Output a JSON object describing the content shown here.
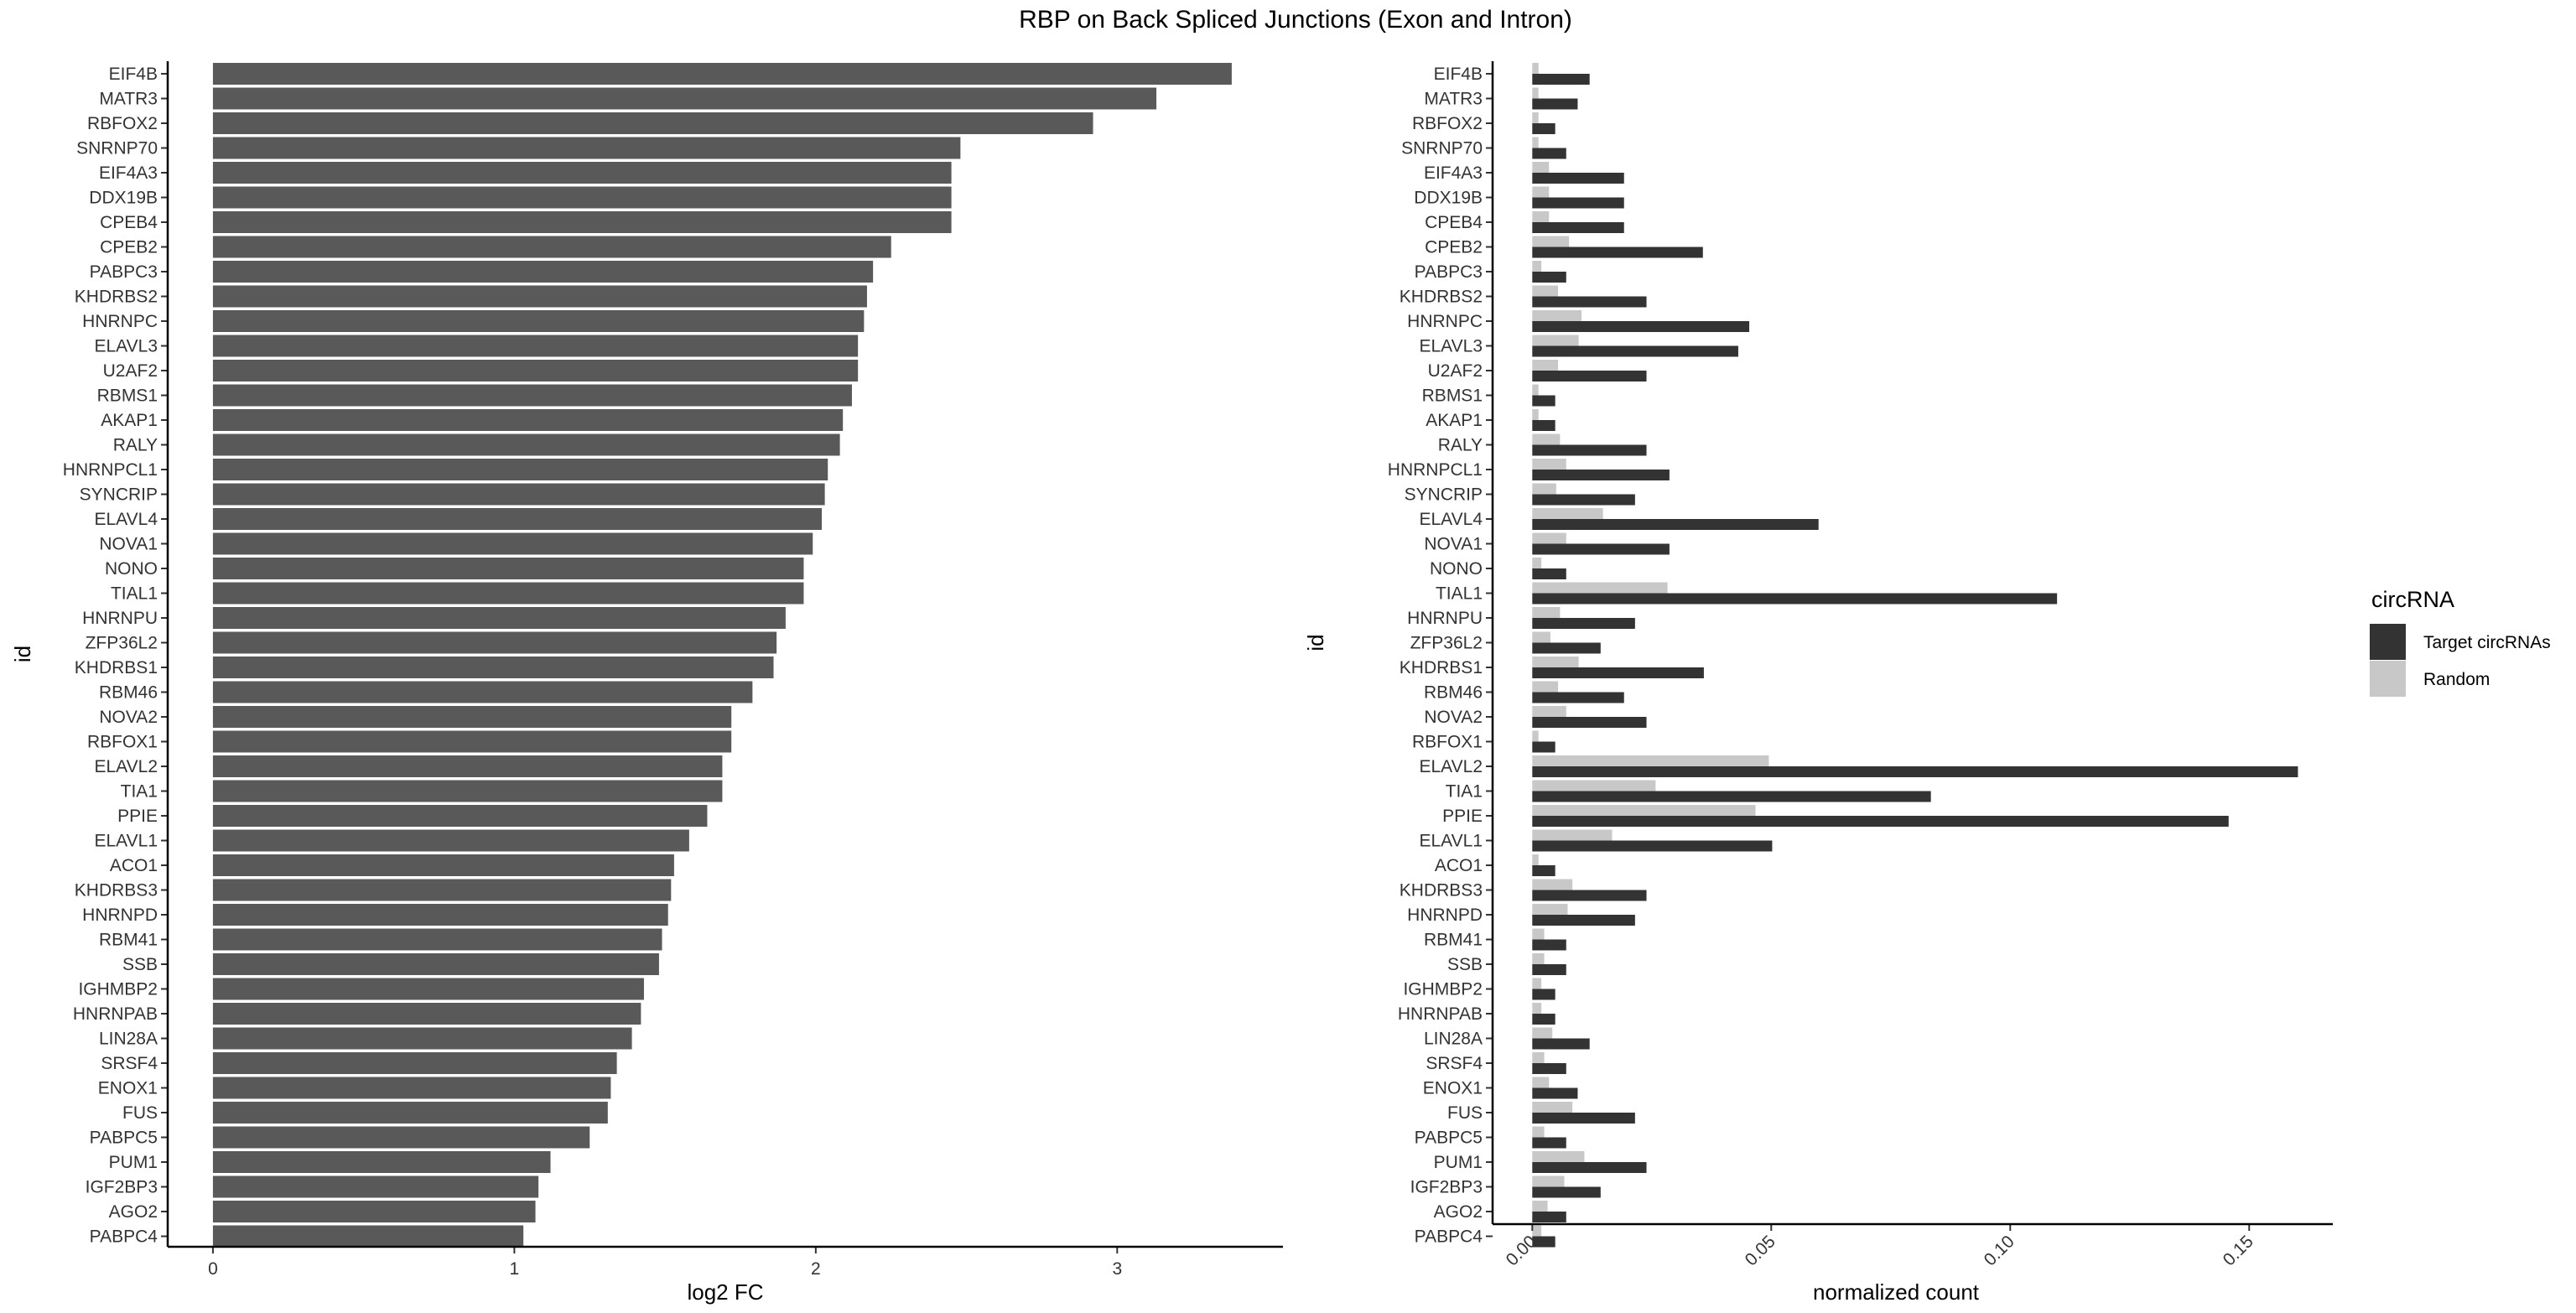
{
  "title": "RBP on Back Spliced Junctions (Exon and Intron)",
  "colors": {
    "fc_bar": "#595959",
    "target": "#333333",
    "random": "#c8c8c8"
  },
  "chart_data": [
    {
      "type": "bar",
      "orientation": "horizontal",
      "xlabel": "log2 FC",
      "ylabel": "id",
      "xlim": [
        -0.15,
        3.55
      ],
      "xticks": [
        0,
        1,
        2,
        3
      ],
      "xtick_labels": [
        "0",
        "1",
        "2",
        "3"
      ],
      "categories": [
        "EIF4B",
        "MATR3",
        "RBFOX2",
        "SNRNP70",
        "EIF4A3",
        "DDX19B",
        "CPEB4",
        "CPEB2",
        "PABPC3",
        "KHDRBS2",
        "HNRNPC",
        "ELAVL3",
        "U2AF2",
        "RBMS1",
        "AKAP1",
        "RALY",
        "HNRNPCL1",
        "SYNCRIP",
        "ELAVL4",
        "NOVA1",
        "NONO",
        "TIAL1",
        "HNRNPU",
        "ZFP36L2",
        "KHDRBS1",
        "RBM46",
        "NOVA2",
        "RBFOX1",
        "ELAVL2",
        "TIA1",
        "PPIE",
        "ELAVL1",
        "ACO1",
        "KHDRBS3",
        "HNRNPD",
        "RBM41",
        "SSB",
        "IGHMBP2",
        "HNRNPAB",
        "LIN28A",
        "SRSF4",
        "ENOX1",
        "FUS",
        "PABPC5",
        "PUM1",
        "IGF2BP3",
        "AGO2",
        "PABPC4"
      ],
      "values": [
        3.38,
        3.13,
        2.92,
        2.48,
        2.45,
        2.45,
        2.45,
        2.25,
        2.19,
        2.17,
        2.16,
        2.14,
        2.14,
        2.12,
        2.09,
        2.08,
        2.04,
        2.03,
        2.02,
        1.99,
        1.96,
        1.96,
        1.9,
        1.87,
        1.86,
        1.79,
        1.72,
        1.72,
        1.69,
        1.69,
        1.64,
        1.58,
        1.53,
        1.52,
        1.51,
        1.49,
        1.48,
        1.43,
        1.42,
        1.39,
        1.34,
        1.32,
        1.31,
        1.25,
        1.12,
        1.08,
        1.07,
        1.03
      ]
    },
    {
      "type": "bar",
      "orientation": "horizontal",
      "grouped": true,
      "xlabel": "normalized count",
      "ylabel": "id",
      "xlim": [
        -0.0083,
        0.1675
      ],
      "xticks": [
        0,
        0.05,
        0.1,
        0.15
      ],
      "xtick_labels": [
        "0.00",
        "0.05",
        "0.10",
        "0.15"
      ],
      "legend": {
        "title": "circRNA",
        "position": "right"
      },
      "categories": [
        "EIF4B",
        "MATR3",
        "RBFOX2",
        "SNRNP70",
        "EIF4A3",
        "DDX19B",
        "CPEB4",
        "CPEB2",
        "PABPC3",
        "KHDRBS2",
        "HNRNPC",
        "ELAVL3",
        "U2AF2",
        "RBMS1",
        "AKAP1",
        "RALY",
        "HNRNPCL1",
        "SYNCRIP",
        "ELAVL4",
        "NOVA1",
        "NONO",
        "TIAL1",
        "HNRNPU",
        "ZFP36L2",
        "KHDRBS1",
        "RBM46",
        "NOVA2",
        "RBFOX1",
        "ELAVL2",
        "TIA1",
        "PPIE",
        "ELAVL1",
        "ACO1",
        "KHDRBS3",
        "HNRNPD",
        "RBM41",
        "SSB",
        "IGHMBP2",
        "HNRNPAB",
        "LIN28A",
        "SRSF4",
        "ENOX1",
        "FUS",
        "PABPC5",
        "PUM1",
        "IGF2BP3",
        "AGO2",
        "PABPC4"
      ],
      "series": [
        {
          "name": "Target circRNAs",
          "values": [
            0.012,
            0.0095,
            0.0048,
            0.0071,
            0.0192,
            0.0192,
            0.0192,
            0.0357,
            0.0071,
            0.0239,
            0.0454,
            0.0431,
            0.0239,
            0.0048,
            0.0048,
            0.0239,
            0.0287,
            0.0215,
            0.0599,
            0.0287,
            0.0071,
            0.1098,
            0.0215,
            0.0143,
            0.0359,
            0.0192,
            0.0239,
            0.0048,
            0.1602,
            0.0834,
            0.1457,
            0.0502,
            0.0048,
            0.0239,
            0.0215,
            0.0071,
            0.0071,
            0.0048,
            0.0048,
            0.012,
            0.0071,
            0.0095,
            0.0215,
            0.0071,
            0.0239,
            0.0143,
            0.0071,
            0.0048
          ]
        },
        {
          "name": "Random",
          "values": [
            0.0013,
            0.0013,
            0.0013,
            0.0013,
            0.0035,
            0.0035,
            0.0035,
            0.0077,
            0.0019,
            0.0054,
            0.0103,
            0.0097,
            0.0054,
            0.0013,
            0.0013,
            0.0058,
            0.0071,
            0.005,
            0.0148,
            0.0071,
            0.0019,
            0.0283,
            0.0058,
            0.0038,
            0.0097,
            0.0054,
            0.0071,
            0.0013,
            0.0495,
            0.0258,
            0.0467,
            0.0167,
            0.0013,
            0.0084,
            0.0074,
            0.0025,
            0.0025,
            0.0019,
            0.0019,
            0.0042,
            0.0025,
            0.0035,
            0.0084,
            0.0025,
            0.0109,
            0.0067,
            0.0032,
            0.0019
          ]
        }
      ]
    }
  ]
}
